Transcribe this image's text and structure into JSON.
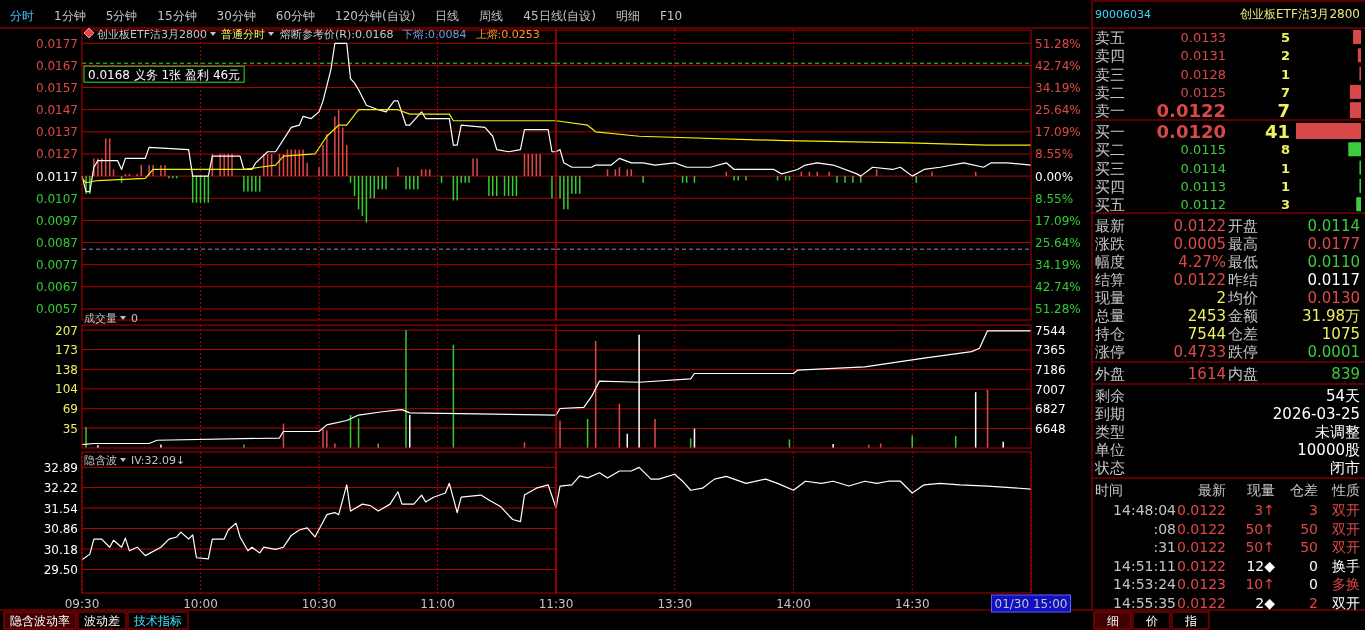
{
  "chart_data": [
    {
      "type": "line",
      "title": "创业板ETF沽3月2800",
      "subtitle": "普通分时",
      "annotations": [
        "熔断参考价(R):0.0168",
        "下熔:0.0084",
        "上熔:0.0253",
        {
          "text": "0.0168 义务 1张 盈利 46元",
          "x": 9.5,
          "y": 0.0168
        }
      ],
      "xlim": [
        9.5,
        11.5
      ],
      "xticks": [
        {
          "value": 10,
          "label": null
        },
        {
          "value": 10.5,
          "label": null
        },
        {
          "value": 11,
          "label": null
        }
      ],
      "tick_labels": "y",
      "grid": true,
      "ylim": [
        0.0052,
        0.0183
      ],
      "yticks": [
        0.0177,
        0.0167,
        0.0157,
        0.0147,
        0.0137,
        0.0127,
        0.0117,
        0.0107,
        0.0097,
        0.0087,
        0.0077,
        0.0067,
        0.0057
      ],
      "ref_lines": [
        {
          "axis": "y",
          "value": 0.0168,
          "color": "#33dd33",
          "line_style": "dashed"
        },
        {
          "axis": "y",
          "value": 0.0084,
          "color": "#7799cc",
          "line_style": "dashed"
        }
      ],
      "series": [
        {
          "type": "bar",
          "color": "#e04848",
          "x": [
            9.55,
            9.567,
            9.583,
            9.6,
            9.617,
            9.633,
            9.683,
            9.7,
            9.733,
            9.75,
            9.783,
            9.8,
            9.833,
            9.85,
            10.05,
            10.083,
            10.1,
            10.117,
            10.133,
            10.267,
            10.283,
            10.3,
            10.333,
            10.35,
            10.367,
            10.383,
            10.4,
            10.417,
            10.433,
            10.45,
            10.5,
            10.517,
            10.533,
            10.567,
            10.583,
            10.6,
            10.617,
            10.833,
            10.933,
            10.95,
            10.967,
            11.15,
            11.167,
            11.367,
            11.383,
            11.4,
            11.417,
            11.433
          ],
          "values": [
            0.0008,
            0.0008,
            0.0008,
            0.0017,
            0.0017,
            0.0003,
            0.0001,
            0.0001,
            0.0001,
            0.0005,
            0.0005,
            0.0005,
            0.0005,
            0.0005,
            0.001,
            0.001,
            0.001,
            0.001,
            0.001,
            0.001,
            0.001,
            0.001,
            0.001,
            0.001,
            0.0012,
            0.0012,
            0.0012,
            0.0012,
            0.0012,
            0.0006,
            0.0004,
            0.0014,
            0.0019,
            0.0027,
            0.003,
            0.0022,
            0.0014,
            0.0004,
            0.0003,
            0.0003,
            0.0003,
            0.0008,
            0.0008,
            0.001,
            0.001,
            0.001,
            0.001,
            0.001
          ],
          "base": [
            0.0117,
            0.0117,
            0.0117,
            0.0117,
            0.0117,
            0.0117,
            0.0117,
            0.0117,
            0.0117,
            0.0117,
            0.0117,
            0.0117,
            0.0117,
            0.0117,
            0.0117,
            0.0117,
            0.0117,
            0.0117,
            0.0117,
            0.0117,
            0.0117,
            0.0117,
            0.0117,
            0.0117,
            0.0117,
            0.0117,
            0.0117,
            0.0117,
            0.0117,
            0.0117,
            0.0117,
            0.0117,
            0.0117,
            0.0117,
            0.0117,
            0.0117,
            0.0117,
            0.0117,
            0.0117,
            0.0117,
            0.0117,
            0.0117,
            0.0117,
            0.0117,
            0.0117,
            0.0117,
            0.0117,
            0.0117
          ]
        },
        {
          "type": "bar",
          "color": "#33cc33",
          "x": [
            9.517,
            9.533,
            9.667,
            9.867,
            9.883,
            9.9,
            9.967,
            9.983,
            10,
            10.017,
            10.033,
            10.183,
            10.2,
            10.217,
            10.233,
            10.25,
            10.633,
            10.65,
            10.667,
            10.683,
            10.7,
            10.717,
            10.733,
            10.75,
            10.767,
            10.783,
            10.867,
            10.883,
            10.9,
            10.917,
            11.017,
            11.067,
            11.083,
            11.1,
            11.117,
            11.133,
            11.217,
            11.233,
            11.25,
            11.283,
            11.3,
            11.317,
            11.333,
            11.483
          ],
          "values": [
            -0.0008,
            -0.0008,
            -0.0003,
            -0.0001,
            -0.0001,
            -0.0001,
            -0.0012,
            -0.0012,
            -0.0012,
            -0.0012,
            -0.0012,
            -0.0007,
            -0.0007,
            -0.0007,
            -0.0007,
            -0.0007,
            -0.0003,
            -0.0009,
            -0.0015,
            -0.0018,
            -0.0021,
            -0.001,
            -0.001,
            -0.0006,
            -0.0006,
            -0.0006,
            -0.0006,
            -0.0006,
            -0.0006,
            -0.0006,
            -0.0003,
            -0.0011,
            -0.0011,
            -0.0003,
            -0.0003,
            -0.0003,
            -0.0009,
            -0.0009,
            -0.0009,
            -0.0009,
            -0.0009,
            -0.0009,
            -0.0009,
            -0.001
          ],
          "base": [
            0.0117,
            0.0117,
            0.0117,
            0.0117,
            0.0117,
            0.0117,
            0.0117,
            0.0117,
            0.0117,
            0.0117,
            0.0117,
            0.0117,
            0.0117,
            0.0117,
            0.0117,
            0.0117,
            0.0117,
            0.0117,
            0.0117,
            0.0117,
            0.0117,
            0.0117,
            0.0117,
            0.0117,
            0.0117,
            0.0117,
            0.0117,
            0.0117,
            0.0117,
            0.0117,
            0.0117,
            0.0117,
            0.0117,
            0.0117,
            0.0117,
            0.0117,
            0.0117,
            0.0117,
            0.0117,
            0.0117,
            0.0117,
            0.0117,
            0.0117,
            0.0117
          ]
        },
        {
          "type": "line",
          "color": "#ffffff",
          "x": [
            9.5,
            9.517,
            9.533,
            9.55,
            9.567,
            9.65,
            9.667,
            9.683,
            9.767,
            9.783,
            9.95,
            9.967,
            10.033,
            10.05,
            10.167,
            10.183,
            10.217,
            10.233,
            10.283,
            10.317,
            10.383,
            10.417,
            10.433,
            10.467,
            10.5,
            10.517,
            10.55,
            10.567,
            10.617,
            10.633,
            10.65,
            10.667,
            10.7,
            10.75,
            10.783,
            10.817,
            10.833,
            10.867,
            10.883,
            10.933,
            10.95,
            11.05,
            11.067,
            11.083,
            11.1,
            11.2,
            11.233,
            11.25,
            11.3,
            11.35,
            11.367,
            11.467,
            11.483,
            11.5
          ],
          "values": [
            0.0117,
            0.011,
            0.011,
            0.0121,
            0.0124,
            0.0124,
            0.012,
            0.0125,
            0.0125,
            0.013,
            0.0129,
            0.0117,
            0.0117,
            0.0126,
            0.0126,
            0.012,
            0.012,
            0.0123,
            0.0128,
            0.0128,
            0.0139,
            0.014,
            0.0144,
            0.0143,
            0.0146,
            0.0151,
            0.0165,
            0.0177,
            0.0177,
            0.0161,
            0.0159,
            0.0156,
            0.0149,
            0.0147,
            0.0146,
            0.0151,
            0.0151,
            0.014,
            0.014,
            0.0146,
            0.0143,
            0.0143,
            0.0131,
            0.0131,
            0.014,
            0.0139,
            0.0135,
            0.0129,
            0.0128,
            0.0129,
            0.0138,
            0.0138,
            0.0128,
            0.0128
          ]
        },
        {
          "type": "line",
          "color": "#f0f000",
          "x": [
            9.5,
            9.517,
            9.567,
            9.767,
            9.8,
            10.183,
            10.25,
            10.317,
            10.35,
            10.483,
            10.533,
            10.583,
            10.617,
            10.667,
            10.833,
            10.883,
            11.05,
            11.067,
            11.5
          ],
          "values": [
            0.0116,
            0.0114,
            0.0115,
            0.0116,
            0.012,
            0.012,
            0.0121,
            0.0122,
            0.0126,
            0.0127,
            0.0135,
            0.014,
            0.014,
            0.0147,
            0.0147,
            0.0145,
            0.0145,
            0.0142,
            0.0142
          ]
        }
      ]
    },
    {
      "type": "line",
      "xlim": [
        13,
        15
      ],
      "xticks": [
        {
          "value": 13.5,
          "label": null
        },
        {
          "value": 14,
          "label": null
        },
        {
          "value": 14.5,
          "label": null
        }
      ],
      "tick_labels": "y",
      "grid": true,
      "ylim": [
        0.0052,
        0.0183
      ],
      "y2lim": [
        -55.56,
        56.41
      ],
      "y2ticks": [
        {
          "value": 51.28,
          "label": "51.28%"
        },
        {
          "value": 42.74,
          "label": "42.74%"
        },
        {
          "value": 34.19,
          "label": "34.19%"
        },
        {
          "value": 25.64,
          "label": "25.64%"
        },
        {
          "value": 17.09,
          "label": "17.09%"
        },
        {
          "value": 8.55,
          "label": "8.55%"
        },
        {
          "value": 0,
          "label": "0.00%"
        },
        {
          "value": -8.55,
          "label": "8.55%"
        },
        {
          "value": -17.09,
          "label": "17.09%"
        },
        {
          "value": -25.64,
          "label": "25.64%"
        },
        {
          "value": -34.19,
          "label": "34.19%"
        },
        {
          "value": -42.74,
          "label": "42.74%"
        },
        {
          "value": -51.28,
          "label": "51.28%"
        }
      ],
      "ref_lines": [
        {
          "axis": "y",
          "value": 0.0168,
          "color": "#33dd33",
          "line_style": "dashed"
        },
        {
          "axis": "y",
          "value": 0.0084,
          "color": "#7799cc",
          "line_style": "dashed"
        }
      ],
      "series": [
        {
          "type": "bar",
          "color": "#e04848",
          "x": [
            13.217,
            13.25,
            13.267,
            13.3,
            13.317,
            13.717,
            14.033,
            14.067,
            14.1,
            14.15,
            14.35,
            14.583,
            14.767
          ],
          "values": [
            0.0003,
            0.0003,
            0.0004,
            0.0003,
            0.0003,
            0.0002,
            0.0002,
            0.0002,
            0.0002,
            0.0002,
            0.0003,
            0.0002,
            0.0002
          ],
          "base": [
            0.0117,
            0.0117,
            0.0117,
            0.0117,
            0.0117,
            0.0117,
            0.0117,
            0.0117,
            0.0117,
            0.0117,
            0.0117,
            0.0117,
            0.0117
          ]
        },
        {
          "type": "bar",
          "color": "#33cc33",
          "x": [
            13.017,
            13.033,
            13.05,
            13.067,
            13.083,
            13.1,
            13.367,
            13.533,
            13.55,
            13.583,
            13.75,
            13.767,
            13.8,
            13.933,
            13.967,
            13.983,
            14.183,
            14.217,
            14.25,
            14.283,
            14.517
          ],
          "values": [
            -0.001,
            -0.0015,
            -0.0015,
            -0.0008,
            -0.0008,
            -0.0008,
            -0.0003,
            -0.0003,
            -0.0003,
            -0.0003,
            -0.0002,
            -0.0002,
            -0.0002,
            -0.0002,
            -0.0002,
            -0.0002,
            -0.0003,
            -0.0003,
            -0.0003,
            -0.0003,
            -0.0003
          ],
          "base": [
            0.0117,
            0.0117,
            0.0117,
            0.0117,
            0.0117,
            0.0117,
            0.0117,
            0.0117,
            0.0117,
            0.0117,
            0.0117,
            0.0117,
            0.0117,
            0.0117,
            0.0117,
            0.0117,
            0.0117,
            0.0117,
            0.0117,
            0.0117,
            0.0117
          ]
        },
        {
          "type": "line",
          "color": "#ffffff",
          "x": [
            13,
            13.017,
            13.033,
            13.067,
            13.15,
            13.167,
            13.233,
            13.267,
            13.317,
            13.367,
            13.417,
            13.5,
            13.55,
            13.65,
            13.717,
            13.75,
            13.917,
            13.95,
            14.017,
            14.05,
            14.1,
            14.167,
            14.267,
            14.283,
            14.333,
            14.417,
            14.45,
            14.5,
            14.55,
            14.617,
            14.717,
            14.8,
            14.833,
            14.9,
            15
          ],
          "values": [
            0.0128,
            0.0129,
            0.0123,
            0.0121,
            0.0121,
            0.0122,
            0.0122,
            0.0125,
            0.0123,
            0.0123,
            0.0122,
            0.0123,
            0.0121,
            0.0121,
            0.0123,
            0.012,
            0.012,
            0.0118,
            0.012,
            0.0122,
            0.0123,
            0.0122,
            0.0118,
            0.0117,
            0.0121,
            0.012,
            0.0121,
            0.0117,
            0.012,
            0.0121,
            0.0123,
            0.0121,
            0.0123,
            0.0123,
            0.0122
          ]
        },
        {
          "type": "line",
          "color": "#f0f000",
          "x": [
            13,
            13.133,
            13.167,
            13.35,
            13.967,
            14.483,
            14.817,
            15
          ],
          "values": [
            0.0142,
            0.014,
            0.0137,
            0.0135,
            0.0133,
            0.0132,
            0.0131,
            0.0131
          ]
        }
      ]
    },
    {
      "type": "bar",
      "title": "成交量",
      "annotations": [
        "0"
      ],
      "xlim": [
        9.5,
        11.5
      ],
      "xticks": [
        {
          "value": 10,
          "label": null
        },
        {
          "value": 10.5,
          "label": null
        },
        {
          "value": 11,
          "label": null
        }
      ],
      "tick_labels": "y",
      "grid": true,
      "ylim": [
        0,
        216
      ],
      "yticks": [
        35,
        69,
        104,
        138,
        173,
        207
      ],
      "y2lim": [
        6469,
        7593
      ],
      "series": [
        {
          "type": "bar",
          "color": "#e04848",
          "x": [
            10.35,
            10.517,
            10.533,
            10.567,
            11.367
          ],
          "values": [
            43,
            33,
            31,
            8,
            10
          ]
        },
        {
          "type": "bar",
          "color": "#33cc33",
          "x": [
            9.517,
            10.183,
            10.633,
            10.667,
            10.75,
            10.867,
            11.067
          ],
          "values": [
            37,
            6,
            58,
            52,
            8,
            207,
            181
          ]
        },
        {
          "type": "bar",
          "color": "#ffffff",
          "x": [
            9.567,
            9.833,
            10.883
          ],
          "values": [
            5,
            6,
            58
          ]
        },
        {
          "type": "line",
          "axis": "y2",
          "color": "#ffffff",
          "x": [
            9.5,
            9.55,
            9.783,
            9.817,
            10.333,
            10.35,
            10.5,
            10.533,
            10.617,
            10.667,
            10.767,
            10.85,
            10.883,
            11.5
          ],
          "values": [
            6500,
            6510,
            6510,
            6540,
            6560,
            6620,
            6620,
            6680,
            6720,
            6770,
            6800,
            6820,
            6790,
            6770
          ]
        }
      ]
    },
    {
      "type": "bar",
      "xlim": [
        13,
        15
      ],
      "xticks": [
        {
          "value": 13.5,
          "label": null
        },
        {
          "value": 14,
          "label": null
        },
        {
          "value": 14.5,
          "label": null
        }
      ],
      "tick_labels": "y",
      "grid": true,
      "ylim": [
        0,
        216
      ],
      "y2lim": [
        6469,
        7593
      ],
      "y2ticks": [
        6648,
        6827,
        7007,
        7186,
        7365,
        7544
      ],
      "series": [
        {
          "type": "bar",
          "color": "#e04848",
          "x": [
            13.017,
            13.167,
            13.267,
            13.417,
            14.317,
            14.367,
            14.817
          ],
          "values": [
            48,
            188,
            78,
            51,
            6,
            8,
            102
          ]
        },
        {
          "type": "bar",
          "color": "#33cc33",
          "x": [
            13.133,
            13.567,
            13.983,
            14.5,
            14.683
          ],
          "values": [
            51,
            17,
            15,
            22,
            21
          ]
        },
        {
          "type": "bar",
          "color": "#ffffff",
          "x": [
            13.3,
            13.35,
            13.583,
            14.167,
            14.767,
            14.883
          ],
          "values": [
            25,
            199,
            34,
            7,
            98,
            11
          ]
        },
        {
          "type": "line",
          "axis": "y2",
          "color": "#ffffff",
          "x": [
            13,
            13.017,
            13.117,
            13.15,
            13.183,
            13.35,
            13.567,
            13.583,
            14,
            14.017,
            14.3,
            14.55,
            14.75,
            14.783,
            14.817,
            15
          ],
          "values": [
            6770,
            6830,
            6840,
            6940,
            7080,
            7070,
            7100,
            7150,
            7150,
            7180,
            7210,
            7290,
            7350,
            7380,
            7540,
            7540
          ]
        }
      ]
    },
    {
      "type": "line",
      "title": "隐含波",
      "annotations": [
        "IV:32.09↓"
      ],
      "color": "#ffffff",
      "xlim": [
        9.5,
        11.5
      ],
      "xticks": [
        {
          "value": 9.5,
          "label": "09:30"
        },
        {
          "value": 10,
          "label": "10:00"
        },
        {
          "value": 10.5,
          "label": "10:30"
        },
        {
          "value": 11,
          "label": "11:00"
        },
        {
          "value": 11.5,
          "label": "11:30"
        }
      ],
      "grid": true,
      "ylim": [
        28.72,
        33.4
      ],
      "yticks": [
        32.89,
        32.22,
        31.54,
        30.86,
        30.18,
        {
          "value": 29.5,
          "label": "29.50"
        }
      ],
      "x": [
        9.5,
        9.533,
        9.55,
        9.583,
        9.617,
        9.633,
        9.667,
        9.683,
        9.7,
        9.733,
        9.767,
        9.833,
        9.867,
        9.9,
        9.917,
        9.95,
        9.967,
        9.983,
        10.033,
        10.05,
        10.1,
        10.117,
        10.15,
        10.167,
        10.2,
        10.217,
        10.25,
        10.267,
        10.317,
        10.35,
        10.383,
        10.417,
        10.45,
        10.483,
        10.533,
        10.567,
        10.583,
        10.617,
        10.633,
        10.683,
        10.717,
        10.75,
        10.8,
        10.833,
        10.85,
        10.9,
        10.933,
        10.95,
        10.983,
        11.033,
        11.05,
        11.083,
        11.1,
        11.183,
        11.217,
        11.267,
        11.317,
        11.35,
        11.367,
        11.417,
        11.467,
        11.5
      ],
      "values": [
        29.82,
        30.01,
        30.51,
        30.51,
        30.24,
        30.47,
        30.24,
        30.54,
        30.12,
        30.24,
        29.96,
        30.24,
        30.51,
        30.58,
        30.74,
        30.51,
        30.65,
        29.89,
        29.85,
        30.51,
        30.51,
        30.81,
        31.04,
        30.58,
        30.12,
        30.24,
        30.05,
        30.24,
        30.17,
        30.24,
        30.63,
        30.81,
        30.88,
        30.58,
        31.32,
        31.39,
        31.32,
        32.31,
        31.44,
        31.67,
        31.62,
        31.44,
        31.67,
        32.08,
        31.67,
        31.67,
        31.97,
        31.74,
        31.9,
        32.04,
        32.36,
        31.39,
        31.9,
        31.97,
        31.81,
        31.58,
        31.16,
        31.09,
        31.97,
        32.2,
        32.31,
        31.55
      ]
    },
    {
      "type": "line",
      "color": "#ffffff",
      "tick_labels": "x",
      "xlim": [
        13,
        15
      ],
      "xticks": [
        {
          "value": 13.5,
          "label": "13:30"
        },
        {
          "value": 14,
          "label": "14:00"
        },
        {
          "value": 14.5,
          "label": "14:30"
        },
        {
          "value": 15,
          "label": "01/30 15:00"
        }
      ],
      "grid": "x",
      "ylim": [
        28.72,
        33.4
      ],
      "x": [
        13,
        13.017,
        13.067,
        13.1,
        13.133,
        13.183,
        13.217,
        13.267,
        13.317,
        13.35,
        13.4,
        13.433,
        13.5,
        13.533,
        13.567,
        13.617,
        13.667,
        13.717,
        13.8,
        13.883,
        13.933,
        14,
        14.05,
        14.117,
        14.167,
        14.233,
        14.3,
        14.35,
        14.4,
        14.45,
        14.5,
        14.55,
        14.617,
        14.7,
        14.817,
        15
      ],
      "values": [
        31.55,
        32.27,
        32.31,
        32.61,
        32.54,
        32.71,
        32.54,
        32.77,
        32.77,
        32.89,
        32.5,
        32.5,
        32.66,
        32.43,
        32.13,
        32.2,
        32.5,
        32.59,
        32.36,
        32.5,
        32.36,
        32.13,
        32.43,
        32.36,
        32.43,
        32.27,
        32.43,
        32.36,
        32.43,
        32.43,
        32.04,
        32.31,
        32.36,
        32.31,
        32.27,
        32.17
      ]
    },
    {
      "type": "bar",
      "orientation": "horizontal",
      "title": "创业板ETF沽3月2800",
      "subtitle": "90006034",
      "data_labels": true,
      "categories": [
        "卖五",
        "卖四",
        "卖三",
        "卖二",
        "卖一",
        "买一",
        "买二",
        "买三",
        "买四",
        "买五"
      ],
      "values": [
        5,
        2,
        1,
        7,
        7,
        41,
        8,
        1,
        1,
        3
      ],
      "colors": [
        "#d84848",
        "#d84848",
        "#d84848",
        "#d84848",
        "#d84848",
        "#d84848",
        "#3ccc3c",
        "#3ccc3c",
        "#3ccc3c",
        "#3ccc3c"
      ],
      "annotations": [
        "0.0133",
        "0.0131",
        "0.0128",
        "0.0125",
        "0.0122",
        "0.0120",
        "0.0115",
        "0.0114",
        "0.0113",
        "0.0112"
      ]
    },
    {
      "type": "other",
      "annotations": [
        "最新",
        "0.0122",
        "开盘",
        "0.0114",
        "涨跌",
        "0.0005",
        "最高",
        "0.0177",
        "幅度",
        "4.27%",
        "最低",
        "0.0110",
        "结算",
        "0.0122",
        "昨结",
        "0.0117",
        "现量",
        "2",
        "均价",
        "0.0130",
        "总量",
        "2453",
        "金额",
        "31.98万",
        "持仓",
        "7544",
        "仓差",
        "1075",
        "涨停",
        "0.4733",
        "跌停",
        "0.0001",
        "外盘",
        "1614",
        "内盘",
        "839"
      ]
    },
    {
      "type": "other",
      "annotations": [
        "剩余",
        "54天",
        "到期",
        "2026-03-25",
        "类型",
        "未调整",
        "单位",
        "10000股",
        "状态",
        "闭市"
      ]
    },
    {
      "type": "other",
      "annotations": [
        "时间",
        "最新",
        "现量",
        "仓差",
        "性质",
        "14:48:04",
        "0.0122",
        "3↑",
        "3",
        "双开",
        ":08",
        "0.0122",
        "50↑",
        "50",
        "双开",
        ":31",
        "0.0122",
        "50↑",
        "50",
        "双开",
        "14:51:11",
        "0.0122",
        "12◆",
        "0",
        "换手",
        "14:53:24",
        "0.0123",
        "10↑",
        "0",
        "多换",
        "14:55:35",
        "0.0122",
        "2◆",
        "2",
        "双开"
      ]
    },
    {
      "type": "other",
      "annotations": [
        "分时",
        "1分钟",
        "5分钟",
        "15分钟",
        "30分钟",
        "60分钟",
        "120分钟(自设)",
        "日线",
        "周线",
        "45日线(自设)",
        "明细",
        "F10"
      ]
    },
    {
      "type": "other",
      "annotations": [
        "隐含波动率",
        "波动差",
        "技术指标"
      ]
    },
    {
      "type": "other",
      "annotations": [
        "细",
        "价",
        "指"
      ]
    }
  ]
}
